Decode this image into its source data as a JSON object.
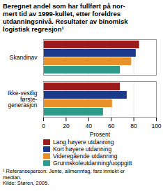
{
  "chart_data": {
    "type": "bar",
    "orientation": "horizontal",
    "title": "Beregnet andel som har fullført på nor-\nmert tid av 1999-kullet, etter foreldres\nutdanningsnivå. Resultater av binomisk\nlogistisk regresjon¹",
    "categories": [
      "Skandinav",
      "Ikke-vestlig\nførste-\ngenerasjon"
    ],
    "series": [
      {
        "name": "Lang høyere utdanning",
        "color": "#9B1B1B",
        "values": [
          85,
          68
        ]
      },
      {
        "name": "Kort høyere utdanning",
        "color": "#1B3B8A",
        "values": [
          82,
          74
        ]
      },
      {
        "name": "Videregående utdanning",
        "color": "#E8912A",
        "values": [
          78,
          61
        ]
      },
      {
        "name": "Grunnskoleutdanning/uoppgitt",
        "color": "#2E9B8A",
        "values": [
          68,
          53
        ]
      }
    ],
    "xlabel": "Prosent",
    "xlim": [
      0,
      100
    ],
    "xticks": [
      0,
      20,
      40,
      60,
      80,
      100
    ],
    "grid": true,
    "legend": "bottom",
    "footnote": "¹ Referanseperson: Jente, allmennfag, fars inntekt er\nmedian.\nKilde: Støren, 2005."
  }
}
